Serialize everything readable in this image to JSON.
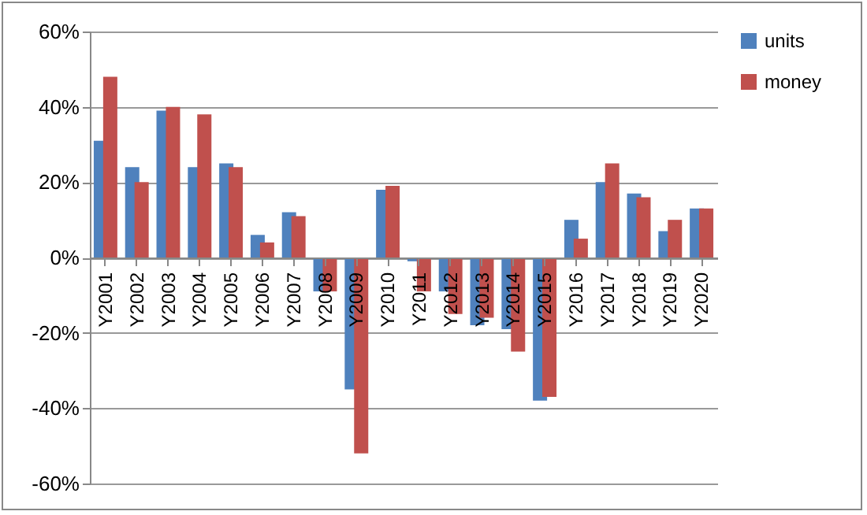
{
  "chart_data": {
    "type": "bar",
    "categories": [
      "Y2001",
      "Y2002",
      "Y2003",
      "Y2004",
      "Y2005",
      "Y2006",
      "Y2007",
      "Y2008",
      "Y2009",
      "Y2010",
      "Y2011",
      "Y2012",
      "Y2013",
      "Y2014",
      "Y2015",
      "Y2016",
      "Y2017",
      "Y2018",
      "Y2019",
      "Y2020"
    ],
    "series": [
      {
        "name": "units",
        "color": "#4f81bd",
        "values": [
          31,
          24,
          39,
          24,
          25,
          6,
          12,
          -9,
          -35,
          18,
          -1,
          -9,
          -18,
          -19,
          -38,
          10,
          20,
          17,
          7,
          13
        ]
      },
      {
        "name": "money",
        "color": "#c0504d",
        "values": [
          48,
          20,
          40,
          38,
          24,
          4,
          11,
          -9,
          -52,
          19,
          -9,
          -15,
          -16,
          -25,
          -37,
          5,
          25,
          16,
          10,
          13
        ]
      }
    ],
    "ylim": [
      -60,
      60
    ],
    "yticks": [
      {
        "value": -60,
        "label": "-60%"
      },
      {
        "value": -40,
        "label": "-40%"
      },
      {
        "value": -20,
        "label": "-20%"
      },
      {
        "value": 0,
        "label": "0%"
      },
      {
        "value": 20,
        "label": "20%"
      },
      {
        "value": 40,
        "label": "40%"
      },
      {
        "value": 60,
        "label": "60%"
      }
    ],
    "grid": "y",
    "legend": "right"
  }
}
